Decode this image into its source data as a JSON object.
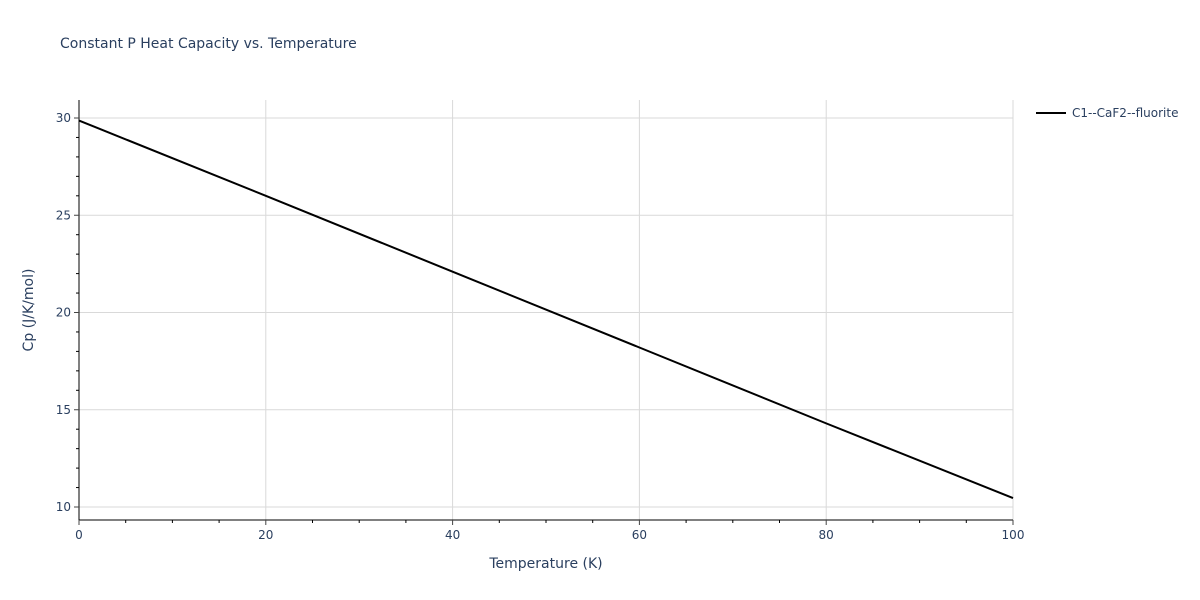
{
  "chart_data": {
    "type": "line",
    "title": "Constant P Heat Capacity vs. Temperature",
    "xlabel": "Temperature (K)",
    "ylabel": "Cp (J/K/mol)",
    "xlim": [
      0,
      100
    ],
    "ylim": [
      9.5,
      31
    ],
    "x_ticks": [
      0,
      20,
      40,
      60,
      80,
      100
    ],
    "y_ticks": [
      10,
      15,
      20,
      25,
      30
    ],
    "x_minor_step": 5,
    "y_minor_step": 1,
    "grid": true,
    "legend_position": "top-right-outside",
    "series": [
      {
        "name": "C1--CaF2--fluorite",
        "color": "#000000",
        "x": [
          0,
          20,
          40,
          60,
          80,
          100
        ],
        "y": [
          29.87,
          26.0,
          22.1,
          18.2,
          14.3,
          10.46
        ]
      }
    ]
  },
  "colors": {
    "text": "#2a3f5f",
    "grid": "#d9d9d9",
    "axis": "#000000",
    "background": "#ffffff"
  }
}
